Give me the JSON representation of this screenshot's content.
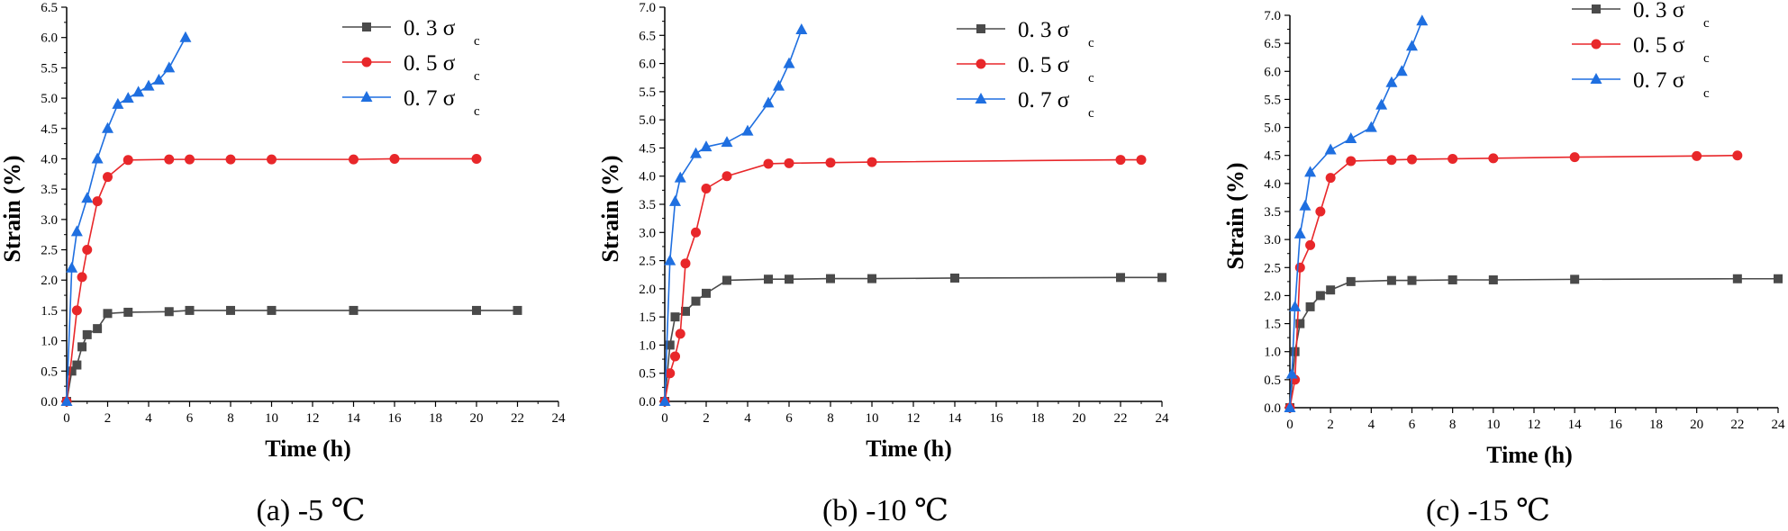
{
  "figure": {
    "captions": [
      "(a) -5  ℃",
      "(b) -10  ℃",
      "(c) -15  ℃"
    ]
  },
  "colors": {
    "series_0": "#4a4a4a",
    "series_1": "#e8272a",
    "series_2": "#1f6fe0",
    "axis": "#000000"
  },
  "chart_data": [
    {
      "type": "line",
      "title": "(a) -5  ℃",
      "xlabel": "Time (h)",
      "ylabel": "Strain (%)",
      "xlim": [
        0,
        24
      ],
      "ylim": [
        0,
        6.5
      ],
      "xticks": [
        0,
        2,
        4,
        6,
        8,
        10,
        12,
        14,
        16,
        18,
        20,
        22,
        24
      ],
      "yticks": [
        0,
        0.5,
        1.0,
        1.5,
        2.0,
        2.5,
        3.0,
        3.5,
        4.0,
        4.5,
        5.0,
        5.5,
        6.0,
        6.5
      ],
      "ytick_labels": [
        "0.0",
        "0.5",
        "1.0",
        "1.5",
        "2.0",
        "2.5",
        "3.0",
        "3.5",
        "4.0",
        "4.5",
        "5.0",
        "5.5",
        "6.0",
        "6.5"
      ],
      "legend_position": "top-right",
      "series": [
        {
          "name": "0. 3 σ",
          "sub": "c",
          "marker": "square",
          "x": [
            0,
            0.25,
            0.5,
            0.75,
            1,
            1.5,
            2,
            3,
            5,
            6,
            8,
            10,
            14,
            20,
            22
          ],
          "y": [
            0,
            0.5,
            0.6,
            0.9,
            1.1,
            1.2,
            1.45,
            1.47,
            1.48,
            1.5,
            1.5,
            1.5,
            1.5,
            1.5,
            1.5
          ]
        },
        {
          "name": "0. 5 σ",
          "sub": "c",
          "marker": "circle",
          "x": [
            0,
            0.5,
            0.75,
            1,
            1.5,
            2,
            3,
            5,
            6,
            8,
            10,
            14,
            16,
            20
          ],
          "y": [
            0,
            1.5,
            2.05,
            2.5,
            3.3,
            3.7,
            3.98,
            3.99,
            3.99,
            3.99,
            3.99,
            3.99,
            4.0,
            4.0
          ]
        },
        {
          "name": "0. 7 σ",
          "sub": "c",
          "marker": "triangle",
          "x": [
            0,
            0.25,
            0.5,
            1,
            1.5,
            2,
            2.5,
            3,
            3.5,
            4,
            4.5,
            5,
            5.8
          ],
          "y": [
            0,
            2.2,
            2.8,
            3.35,
            4.0,
            4.5,
            4.9,
            5.0,
            5.1,
            5.2,
            5.3,
            5.5,
            6.0
          ]
        }
      ]
    },
    {
      "type": "line",
      "title": "(b) -10  ℃",
      "xlabel": "Time (h)",
      "ylabel": "Strain (%)",
      "xlim": [
        0,
        24
      ],
      "ylim": [
        0,
        7.0
      ],
      "xticks": [
        0,
        2,
        4,
        6,
        8,
        10,
        12,
        14,
        16,
        18,
        20,
        22,
        24
      ],
      "yticks": [
        0,
        0.5,
        1.0,
        1.5,
        2.0,
        2.5,
        3.0,
        3.5,
        4.0,
        4.5,
        5.0,
        5.5,
        6.0,
        6.5,
        7.0
      ],
      "ytick_labels": [
        "0.0",
        "0.5",
        "1.0",
        "1.5",
        "2.0",
        "2.5",
        "3.0",
        "3.5",
        "4.0",
        "4.5",
        "5.0",
        "5.5",
        "6.0",
        "6.5",
        "7.0"
      ],
      "legend_position": "top-right",
      "series": [
        {
          "name": "0. 3 σ",
          "sub": "c",
          "marker": "square",
          "x": [
            0,
            0.25,
            0.5,
            1,
            1.5,
            2,
            3,
            5,
            6,
            8,
            10,
            14,
            22,
            24
          ],
          "y": [
            0,
            1.0,
            1.5,
            1.6,
            1.78,
            1.92,
            2.15,
            2.17,
            2.17,
            2.18,
            2.18,
            2.19,
            2.2,
            2.2
          ]
        },
        {
          "name": "0. 5 σ",
          "sub": "c",
          "marker": "circle",
          "x": [
            0,
            0.25,
            0.5,
            0.75,
            1,
            1.5,
            2,
            3,
            5,
            6,
            8,
            10,
            22,
            23
          ],
          "y": [
            0,
            0.5,
            0.8,
            1.2,
            2.45,
            3.0,
            3.78,
            4.0,
            4.22,
            4.23,
            4.24,
            4.25,
            4.29,
            4.29
          ]
        },
        {
          "name": "0. 7 σ",
          "sub": "c",
          "marker": "triangle",
          "x": [
            0,
            0.25,
            0.5,
            0.75,
            1.5,
            2,
            3,
            4,
            5,
            5.5,
            6,
            6.6
          ],
          "y": [
            0,
            2.5,
            3.55,
            3.97,
            4.4,
            4.52,
            4.6,
            4.8,
            5.3,
            5.6,
            6.0,
            6.6
          ]
        }
      ]
    },
    {
      "type": "line",
      "title": "(c) -15  ℃",
      "xlabel": "Time (h)",
      "ylabel": "Strain (%)",
      "xlim": [
        0,
        24
      ],
      "ylim": [
        0,
        7.0
      ],
      "xticks": [
        0,
        2,
        4,
        6,
        8,
        10,
        12,
        14,
        16,
        18,
        20,
        22,
        24
      ],
      "yticks": [
        0,
        0.5,
        1.0,
        1.5,
        2.0,
        2.5,
        3.0,
        3.5,
        4.0,
        4.5,
        5.0,
        5.5,
        6.0,
        6.5,
        7.0
      ],
      "ytick_labels": [
        "0.0",
        "0.5",
        "1.0",
        "1.5",
        "2.0",
        "2.5",
        "3.0",
        "3.5",
        "4.0",
        "4.5",
        "5.0",
        "5.5",
        "6.0",
        "6.5",
        "7.0"
      ],
      "legend_position": "top-right",
      "series": [
        {
          "name": "0. 3 σ",
          "sub": "c",
          "marker": "square",
          "x": [
            0,
            0.25,
            0.5,
            1,
            1.5,
            2,
            3,
            5,
            6,
            8,
            10,
            14,
            22,
            24
          ],
          "y": [
            0,
            1.0,
            1.5,
            1.8,
            2.0,
            2.1,
            2.25,
            2.27,
            2.27,
            2.28,
            2.28,
            2.29,
            2.3,
            2.3
          ]
        },
        {
          "name": "0. 5 σ",
          "sub": "c",
          "marker": "circle",
          "x": [
            0,
            0.25,
            0.5,
            1,
            1.5,
            2,
            3,
            5,
            6,
            8,
            10,
            14,
            20,
            22
          ],
          "y": [
            0,
            0.5,
            2.5,
            2.9,
            3.5,
            4.1,
            4.4,
            4.42,
            4.43,
            4.44,
            4.45,
            4.47,
            4.49,
            4.5
          ]
        },
        {
          "name": "0. 7 σ",
          "sub": "c",
          "marker": "triangle",
          "x": [
            0,
            0.1,
            0.25,
            0.5,
            0.75,
            1,
            2,
            3,
            4,
            4.5,
            5,
            5.5,
            6,
            6.5
          ],
          "y": [
            0,
            0.6,
            1.8,
            3.1,
            3.6,
            4.2,
            4.6,
            4.8,
            5.0,
            5.4,
            5.8,
            6.0,
            6.45,
            6.9
          ]
        }
      ]
    }
  ]
}
